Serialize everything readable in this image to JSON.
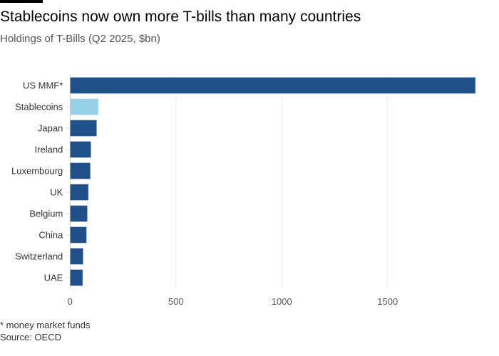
{
  "title": "Stablecoins now own more T-bills than many countries",
  "subtitle": "Holdings of T-Bills (Q2 2025, $bn)",
  "footnote": "* money market funds",
  "source": "Source: OECD",
  "chart_data": {
    "type": "bar",
    "orientation": "horizontal",
    "title": "Stablecoins now own more T-bills than many countries",
    "subtitle": "Holdings of T-Bills (Q2 2025, $bn)",
    "categories": [
      "US MMF*",
      "Stablecoins",
      "Japan",
      "Ireland",
      "Luxembourg",
      "UK",
      "Belgium",
      "China",
      "Switzerland",
      "UAE"
    ],
    "values": [
      1915,
      134,
      126,
      99,
      96,
      87,
      82,
      78,
      62,
      60
    ],
    "colors": [
      "#1f5188",
      "#96d2e5",
      "#1f5188",
      "#1f5188",
      "#1f5188",
      "#1f5188",
      "#1f5188",
      "#1f5188",
      "#1f5188",
      "#1f5188"
    ],
    "xticks": [
      0,
      500,
      1000,
      1500
    ],
    "xlim": [
      0,
      1915
    ],
    "grid": true
  }
}
